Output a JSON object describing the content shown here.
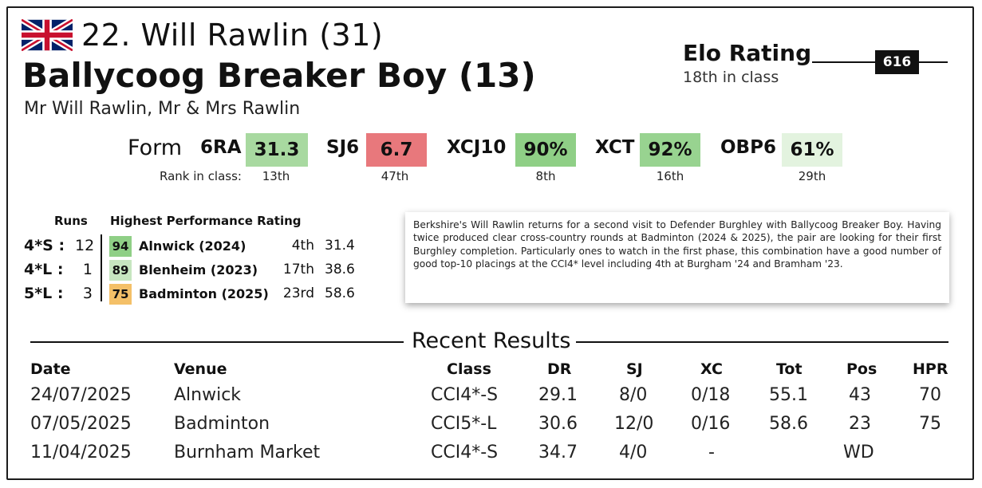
{
  "header": {
    "rider_line": "22. Will Rawlin (31)",
    "horse_line": "Ballycoog Breaker Boy (13)",
    "owners": "Mr Will Rawlin, Mr & Mrs Rawlin",
    "flag_icon": "uk-flag-icon"
  },
  "elo": {
    "title": "Elo Rating",
    "subtitle": "18th in class",
    "value": "616"
  },
  "form": {
    "label": "Form",
    "rank_label": "Rank in class:",
    "items": [
      {
        "code": "6RA",
        "value": "31.3",
        "rank": "13th",
        "color": "#a8d9a0"
      },
      {
        "code": "SJ6",
        "value": "6.7",
        "rank": "47th",
        "color": "#e8787c"
      },
      {
        "code": "XCJ10",
        "value": "90%",
        "rank": "8th",
        "color": "#8fcf86"
      },
      {
        "code": "XCT",
        "value": "92%",
        "rank": "16th",
        "color": "#98d390"
      },
      {
        "code": "OBP6",
        "value": "61%",
        "rank": "29th",
        "color": "#e3f3df"
      }
    ]
  },
  "runs": {
    "runs_header": "Runs",
    "hpr_header": "Highest Performance Rating",
    "rows": [
      {
        "level": "4*S :",
        "count": "12",
        "hpr": "94",
        "hpr_color": "#8fcf86",
        "venue": "Alnwick (2024)",
        "pos": "4th",
        "score": "31.4"
      },
      {
        "level": "4*L :",
        "count": "1",
        "hpr": "89",
        "hpr_color": "#c7e6c0",
        "venue": "Blenheim (2023)",
        "pos": "17th",
        "score": "38.6"
      },
      {
        "level": "5*L :",
        "count": "3",
        "hpr": "75",
        "hpr_color": "#f4c068",
        "venue": "Badminton (2025)",
        "pos": "23rd",
        "score": "58.6"
      }
    ]
  },
  "blurb": "Berkshire's Will Rawlin returns for a second visit to Defender Burghley with Ballycoog Breaker Boy. Having twice produced clear cross-country rounds at Badminton (2024 & 2025), the pair are looking for their first Burghley completion. Particularly ones to watch in the first phase, this combination have a good number of good top-10 placings at the CCI4* level including 4th at Burgham '24 and Bramham '23.",
  "recent": {
    "title": "Recent Results",
    "headers": {
      "date": "Date",
      "venue": "Venue",
      "class": "Class",
      "dr": "DR",
      "sj": "SJ",
      "xc": "XC",
      "tot": "Tot",
      "pos": "Pos",
      "hpr": "HPR"
    },
    "rows": [
      {
        "date": "24/07/2025",
        "venue": "Alnwick",
        "class": "CCI4*-S",
        "dr": "29.1",
        "sj": "8/0",
        "xc": "0/18",
        "tot": "55.1",
        "pos": "43",
        "hpr": "70"
      },
      {
        "date": "07/05/2025",
        "venue": "Badminton",
        "class": "CCI5*-L",
        "dr": "30.6",
        "sj": "12/0",
        "xc": "0/16",
        "tot": "58.6",
        "pos": "23",
        "hpr": "75"
      },
      {
        "date": "11/04/2025",
        "venue": "Burnham Market",
        "class": "CCI4*-S",
        "dr": "34.7",
        "sj": "4/0",
        "xc": "-",
        "tot": "",
        "pos": "WD",
        "hpr": ""
      }
    ]
  }
}
